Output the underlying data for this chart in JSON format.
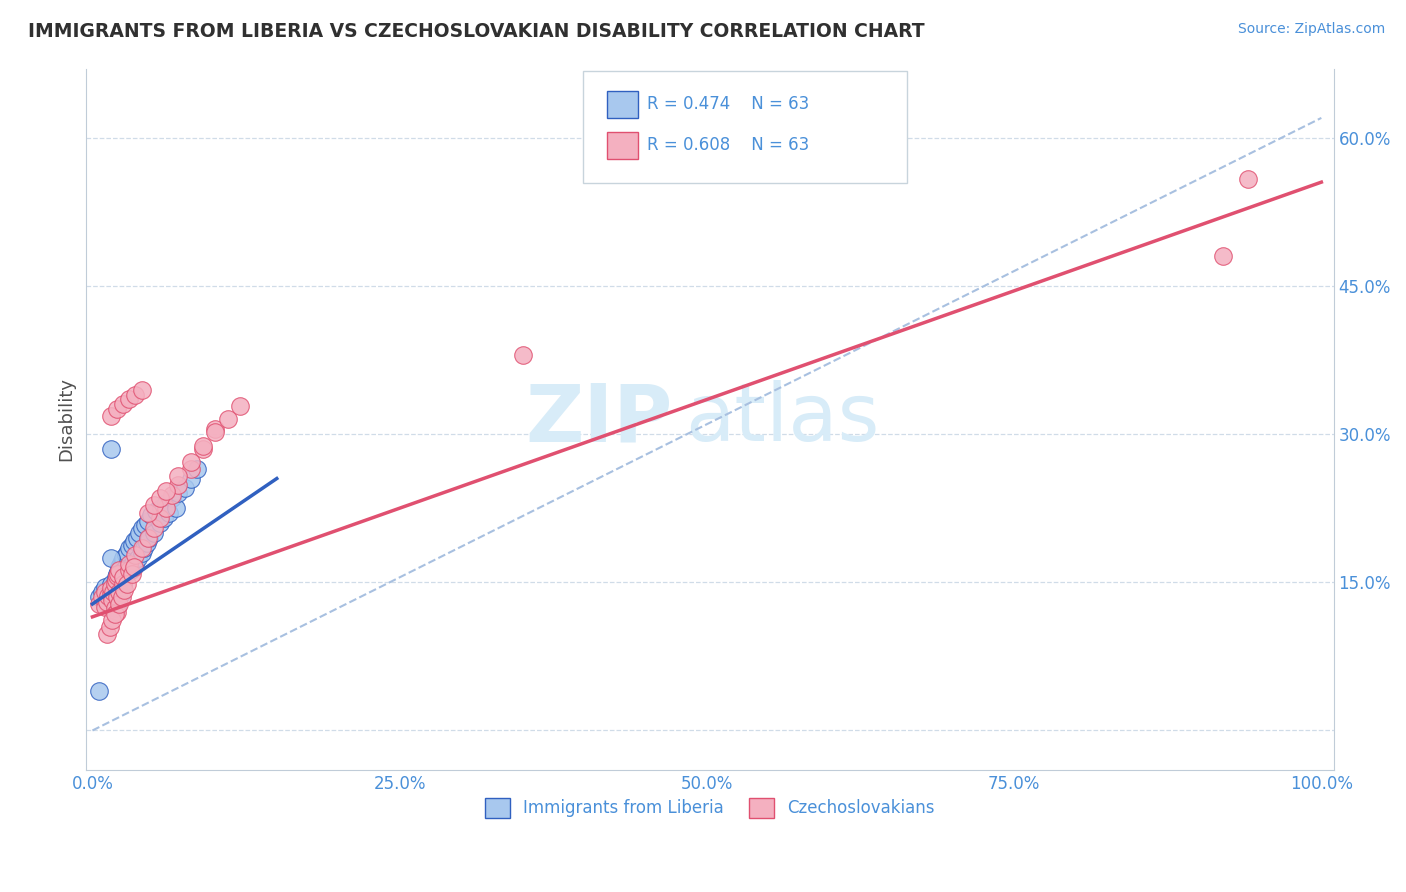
{
  "title": "IMMIGRANTS FROM LIBERIA VS CZECHOSLOVAKIAN DISABILITY CORRELATION CHART",
  "source": "Source: ZipAtlas.com",
  "ylabel": "Disability",
  "legend_labels": [
    "Immigrants from Liberia",
    "Czechoslovakians"
  ],
  "r_liberia": 0.474,
  "r_czech": 0.608,
  "n": 63,
  "xlim": [
    -0.005,
    1.01
  ],
  "ylim": [
    -0.04,
    0.67
  ],
  "yticks": [
    0.0,
    0.15,
    0.3,
    0.45,
    0.6
  ],
  "ytick_labels": [
    "",
    "15.0%",
    "30.0%",
    "45.0%",
    "60.0%"
  ],
  "xticks": [
    0.0,
    0.25,
    0.5,
    0.75,
    1.0
  ],
  "xtick_labels": [
    "0.0%",
    "25.0%",
    "50.0%",
    "75.0%",
    "100.0%"
  ],
  "color_liberia": "#a8c8ee",
  "color_czech": "#f4b0c0",
  "line_color_liberia": "#3060c0",
  "line_color_czech": "#e05070",
  "dash_color": "#a8c0e0",
  "watermark_zip": "ZIP",
  "watermark_atlas": "atlas",
  "watermark_color": "#d8ecf8",
  "background": "#ffffff",
  "grid_color": "#d0dce8",
  "axis_color": "#c0ccd8",
  "tick_color": "#4a90d9",
  "title_color": "#303030",
  "ylabel_color": "#505050",
  "liberia_x": [
    0.005,
    0.008,
    0.01,
    0.01,
    0.012,
    0.013,
    0.015,
    0.015,
    0.016,
    0.017,
    0.018,
    0.018,
    0.019,
    0.02,
    0.02,
    0.02,
    0.021,
    0.022,
    0.022,
    0.023,
    0.023,
    0.024,
    0.024,
    0.025,
    0.025,
    0.026,
    0.027,
    0.028,
    0.028,
    0.03,
    0.03,
    0.031,
    0.032,
    0.033,
    0.034,
    0.035,
    0.036,
    0.037,
    0.038,
    0.04,
    0.04,
    0.042,
    0.043,
    0.044,
    0.045,
    0.046,
    0.048,
    0.05,
    0.052,
    0.055,
    0.056,
    0.058,
    0.06,
    0.062,
    0.065,
    0.068,
    0.07,
    0.075,
    0.08,
    0.085,
    0.015,
    0.015,
    0.005
  ],
  "liberia_y": [
    0.135,
    0.14,
    0.13,
    0.145,
    0.132,
    0.138,
    0.142,
    0.148,
    0.136,
    0.144,
    0.15,
    0.128,
    0.155,
    0.14,
    0.158,
    0.125,
    0.16,
    0.145,
    0.165,
    0.138,
    0.17,
    0.152,
    0.168,
    0.148,
    0.175,
    0.155,
    0.178,
    0.16,
    0.18,
    0.165,
    0.185,
    0.162,
    0.188,
    0.17,
    0.192,
    0.168,
    0.195,
    0.175,
    0.2,
    0.18,
    0.205,
    0.185,
    0.208,
    0.19,
    0.212,
    0.195,
    0.218,
    0.2,
    0.222,
    0.21,
    0.225,
    0.215,
    0.23,
    0.22,
    0.235,
    0.225,
    0.24,
    0.245,
    0.255,
    0.265,
    0.285,
    0.175,
    0.04
  ],
  "czech_x": [
    0.005,
    0.008,
    0.01,
    0.01,
    0.012,
    0.013,
    0.015,
    0.015,
    0.016,
    0.017,
    0.018,
    0.018,
    0.019,
    0.02,
    0.02,
    0.02,
    0.021,
    0.022,
    0.022,
    0.025,
    0.025,
    0.03,
    0.03,
    0.035,
    0.04,
    0.045,
    0.05,
    0.055,
    0.06,
    0.065,
    0.07,
    0.08,
    0.09,
    0.1,
    0.015,
    0.02,
    0.025,
    0.03,
    0.035,
    0.04,
    0.045,
    0.05,
    0.055,
    0.06,
    0.07,
    0.08,
    0.09,
    0.1,
    0.11,
    0.12,
    0.012,
    0.014,
    0.016,
    0.018,
    0.022,
    0.024,
    0.026,
    0.028,
    0.032,
    0.034,
    0.35,
    0.92,
    0.94
  ],
  "czech_y": [
    0.128,
    0.135,
    0.125,
    0.14,
    0.13,
    0.136,
    0.138,
    0.144,
    0.132,
    0.14,
    0.148,
    0.124,
    0.152,
    0.135,
    0.156,
    0.12,
    0.158,
    0.14,
    0.162,
    0.148,
    0.155,
    0.162,
    0.168,
    0.178,
    0.185,
    0.195,
    0.205,
    0.215,
    0.225,
    0.238,
    0.248,
    0.265,
    0.285,
    0.305,
    0.318,
    0.325,
    0.33,
    0.335,
    0.34,
    0.345,
    0.22,
    0.228,
    0.235,
    0.242,
    0.258,
    0.272,
    0.288,
    0.302,
    0.315,
    0.328,
    0.098,
    0.105,
    0.112,
    0.118,
    0.128,
    0.135,
    0.142,
    0.148,
    0.158,
    0.165,
    0.38,
    0.48,
    0.558
  ],
  "czech_line_x0": 0.0,
  "czech_line_y0": 0.115,
  "czech_line_x1": 1.0,
  "czech_line_y1": 0.555,
  "liberia_line_x0": 0.0,
  "liberia_line_y0": 0.128,
  "liberia_line_x1": 0.15,
  "liberia_line_y1": 0.255
}
